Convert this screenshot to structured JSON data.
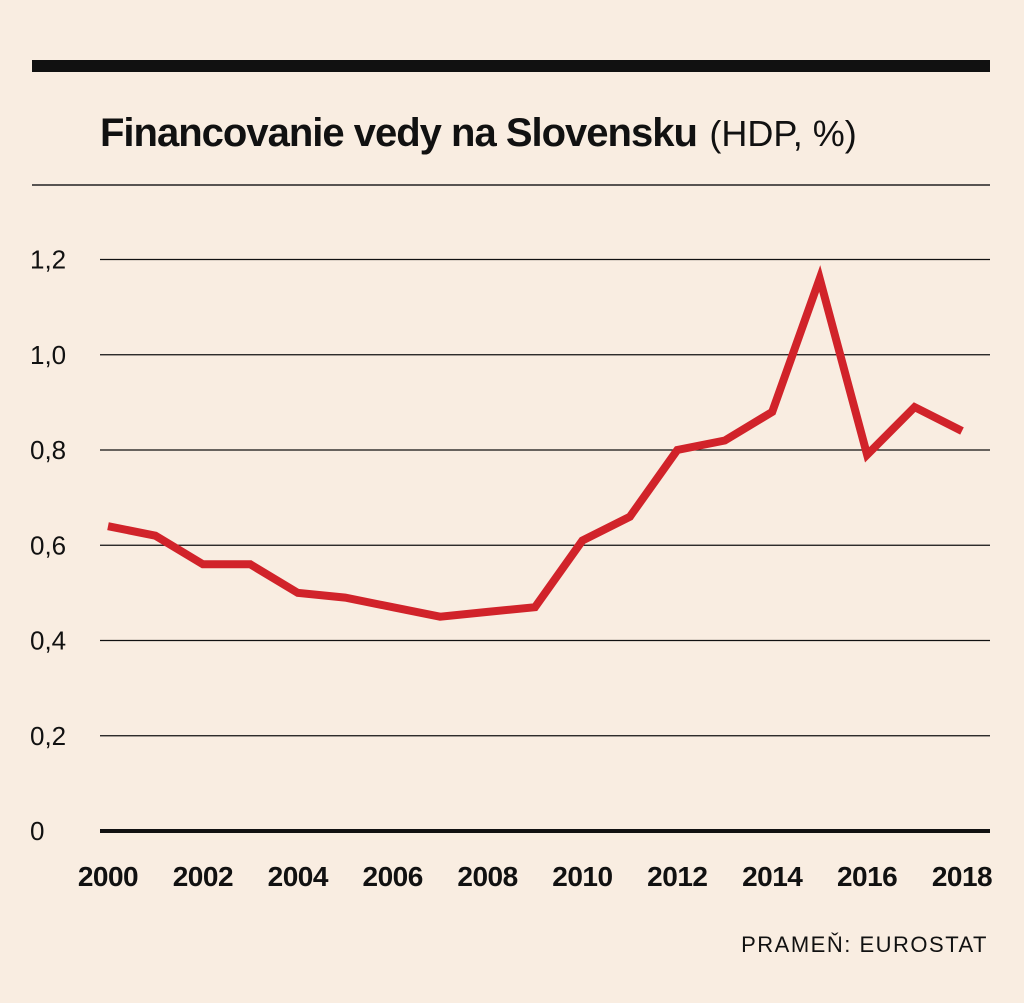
{
  "chart_data": {
    "type": "line",
    "title": "Financovanie vedy na Slovensku",
    "subtitle": "(HDP,  %)",
    "source": "PRAMEŇ: EUROSTAT",
    "xlabel": "",
    "ylabel": "",
    "ylim": [
      0,
      1.2
    ],
    "xlim": [
      2000,
      2018
    ],
    "grid": true,
    "yticks": [
      {
        "value": 0,
        "label": "0"
      },
      {
        "value": 0.2,
        "label": "0,2"
      },
      {
        "value": 0.4,
        "label": "0,4"
      },
      {
        "value": 0.6,
        "label": "0,6"
      },
      {
        "value": 0.8,
        "label": "0,8"
      },
      {
        "value": 1.0,
        "label": "1,0"
      },
      {
        "value": 1.2,
        "label": "1,2"
      }
    ],
    "xticks": [
      "2000",
      "2002",
      "2004",
      "2006",
      "2008",
      "2010",
      "2012",
      "2014",
      "2016",
      "2018"
    ],
    "series": [
      {
        "color": "#d1232a",
        "x": [
          2000,
          2001,
          2002,
          2003,
          2004,
          2005,
          2006,
          2007,
          2008,
          2009,
          2010,
          2011,
          2012,
          2013,
          2014,
          2015,
          2016,
          2017,
          2018
        ],
        "values": [
          0.64,
          0.62,
          0.56,
          0.56,
          0.5,
          0.49,
          0.47,
          0.45,
          0.46,
          0.47,
          0.61,
          0.66,
          0.8,
          0.82,
          0.88,
          1.16,
          0.79,
          0.89,
          0.84
        ]
      }
    ]
  }
}
